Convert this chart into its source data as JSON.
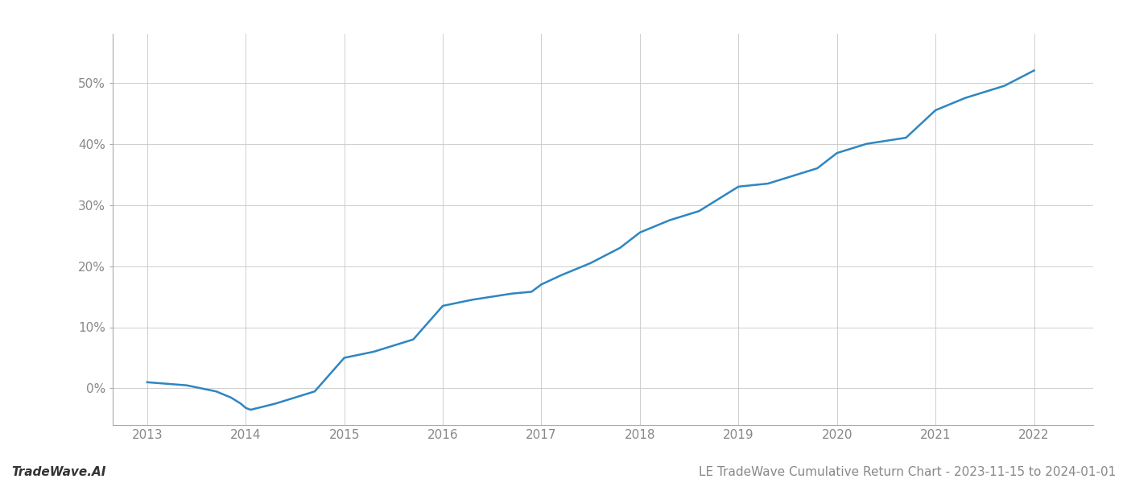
{
  "title": "LE TradeWave Cumulative Return Chart - 2023-11-15 to 2024-01-01",
  "watermark": "TradeWave.AI",
  "line_color": "#2e86c1",
  "background_color": "#ffffff",
  "grid_color": "#c8c8c8",
  "x_years": [
    2013,
    2014,
    2015,
    2016,
    2017,
    2018,
    2019,
    2020,
    2021,
    2022
  ],
  "data_points": [
    [
      2013.0,
      1.0
    ],
    [
      2013.4,
      0.5
    ],
    [
      2013.7,
      -0.5
    ],
    [
      2013.85,
      -1.5
    ],
    [
      2013.95,
      -2.5
    ],
    [
      2014.0,
      -3.2
    ],
    [
      2014.05,
      -3.5
    ],
    [
      2014.1,
      -3.3
    ],
    [
      2014.3,
      -2.5
    ],
    [
      2014.5,
      -1.5
    ],
    [
      2014.7,
      -0.5
    ],
    [
      2015.0,
      5.0
    ],
    [
      2015.3,
      6.0
    ],
    [
      2015.7,
      8.0
    ],
    [
      2016.0,
      13.5
    ],
    [
      2016.3,
      14.5
    ],
    [
      2016.5,
      15.0
    ],
    [
      2016.7,
      15.5
    ],
    [
      2016.9,
      15.8
    ],
    [
      2017.0,
      17.0
    ],
    [
      2017.2,
      18.5
    ],
    [
      2017.5,
      20.5
    ],
    [
      2017.8,
      23.0
    ],
    [
      2018.0,
      25.5
    ],
    [
      2018.3,
      27.5
    ],
    [
      2018.6,
      29.0
    ],
    [
      2019.0,
      33.0
    ],
    [
      2019.3,
      33.5
    ],
    [
      2019.5,
      34.5
    ],
    [
      2019.8,
      36.0
    ],
    [
      2020.0,
      38.5
    ],
    [
      2020.3,
      40.0
    ],
    [
      2020.7,
      41.0
    ],
    [
      2021.0,
      45.5
    ],
    [
      2021.3,
      47.5
    ],
    [
      2021.7,
      49.5
    ],
    [
      2022.0,
      52.0
    ]
  ],
  "ylim": [
    -6,
    58
  ],
  "xlim": [
    2012.65,
    2022.6
  ],
  "yticks": [
    0,
    10,
    20,
    30,
    40,
    50
  ],
  "title_fontsize": 11,
  "watermark_fontsize": 11,
  "axis_label_fontsize": 11,
  "line_width": 1.8
}
